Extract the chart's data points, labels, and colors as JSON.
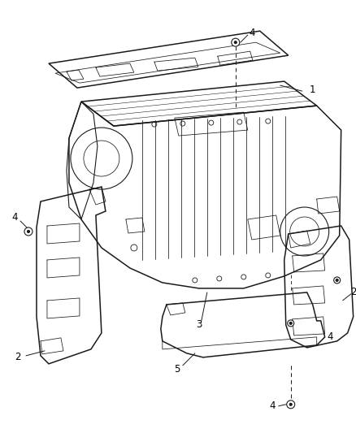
{
  "bg_color": "#ffffff",
  "line_color": "#1a1a1a",
  "label_color": "#000000",
  "fig_width": 4.38,
  "fig_height": 5.33,
  "dpi": 100,
  "lw_main": 1.1,
  "lw_med": 0.8,
  "lw_thin": 0.55,
  "font_size": 8.5
}
